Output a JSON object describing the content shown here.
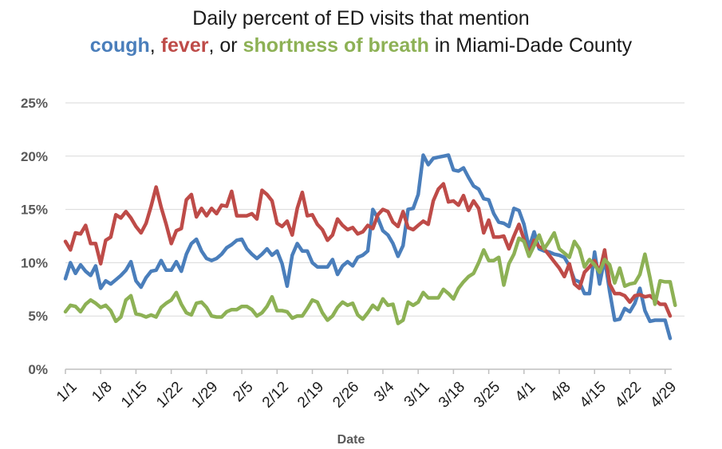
{
  "chart_data": {
    "type": "line",
    "title_line1": "Daily percent of ED visits that mention",
    "title_parts": [
      {
        "text": "cough",
        "series": 0
      },
      {
        "text": ",  "
      },
      {
        "text": "fever",
        "series": 1
      },
      {
        "text": ", or "
      },
      {
        "text": "shortness of breath",
        "series": 2
      },
      {
        "text": " in Miami-Dade County"
      }
    ],
    "xlabel": "Date",
    "ylabel": "",
    "ylim": [
      0,
      25
    ],
    "yticks": [
      0,
      5,
      10,
      15,
      20,
      25
    ],
    "ytick_labels": [
      "0%",
      "5%",
      "10%",
      "15%",
      "20%",
      "25%"
    ],
    "xtick_labels": [
      "1/1",
      "1/8",
      "1/15",
      "1/22",
      "1/29",
      "2/5",
      "2/12",
      "2/19",
      "2/26",
      "3/4",
      "3/11",
      "3/18",
      "3/25",
      "4/1",
      "4/8",
      "4/15",
      "4/22",
      "4/29"
    ],
    "xtick_day_index": [
      0,
      7,
      14,
      21,
      28,
      35,
      42,
      49,
      56,
      63,
      70,
      77,
      84,
      91,
      98,
      105,
      112,
      119
    ],
    "grid": true,
    "legend": "none",
    "series": [
      {
        "name": "cough",
        "color": "#4a7ebb",
        "values": [
          8.5,
          10,
          9,
          9.8,
          9.2,
          8.8,
          9.7,
          7.6,
          8.3,
          8,
          8.4,
          8.8,
          9.3,
          10.1,
          8.3,
          7.7,
          8.6,
          9.2,
          9.3,
          10.2,
          9.3,
          9.3,
          10.1,
          9.2,
          10.8,
          11.8,
          12.2,
          11.1,
          10.4,
          10.2,
          10.4,
          10.8,
          11.4,
          11.7,
          12.1,
          12.2,
          11.3,
          10.8,
          10.4,
          10.8,
          11.3,
          10.7,
          11.1,
          9.9,
          7.8,
          10.7,
          11.8,
          11.1,
          11.1,
          10,
          9.6,
          9.6,
          9.6,
          10.3,
          8.9,
          9.7,
          10.1,
          9.7,
          10.5,
          10.7,
          11.1,
          15,
          14.2,
          13,
          12.6,
          11.8,
          10.6,
          11.6,
          15,
          15.1,
          16.4,
          20.1,
          19.2,
          19.8,
          19.9,
          20,
          20.1,
          18.7,
          18.6,
          18.9,
          18,
          17.2,
          16.9,
          16,
          15.9,
          14.6,
          13.8,
          13.7,
          13.4,
          15.1,
          14.9,
          13.6,
          11.4,
          12.9,
          11.3,
          11.1,
          11,
          10.8,
          10.7,
          10.5,
          9.7,
          8.4,
          8.2,
          7.1,
          7.1,
          11,
          8,
          10.4,
          7.3,
          4.6,
          4.7,
          5.7,
          5.4,
          6.2,
          7.6,
          5.5,
          4.5,
          4.6,
          4.6,
          4.6,
          2.9
        ]
      },
      {
        "name": "fever",
        "color": "#be4b48",
        "values": [
          12,
          11.2,
          12.8,
          12.7,
          13.5,
          11.8,
          11.8,
          9.9,
          12.1,
          12.4,
          14.5,
          14.2,
          14.8,
          14.2,
          13.4,
          12.8,
          13.7,
          15.3,
          17.1,
          15.2,
          13.6,
          11.8,
          13,
          13.2,
          15.9,
          16.4,
          14.3,
          15.1,
          14.4,
          15.1,
          14.6,
          15.4,
          15.3,
          16.7,
          14.4,
          14.4,
          14.4,
          14.6,
          14.1,
          16.8,
          16.4,
          15.8,
          13.7,
          13.4,
          13.9,
          12.6,
          15.1,
          16.6,
          14.4,
          14.5,
          13.6,
          13.1,
          12.1,
          12.6,
          14.1,
          13.5,
          13.1,
          13.3,
          12.7,
          12.9,
          13.5,
          13.2,
          14.5,
          15,
          14.8,
          13.8,
          13.4,
          14.8,
          13.3,
          13.1,
          13.5,
          13.9,
          13.6,
          15.8,
          16.9,
          17.4,
          15.7,
          15.8,
          15.4,
          16.3,
          14.9,
          15.8,
          15.1,
          12.8,
          14,
          12.4,
          12.4,
          12.5,
          11.3,
          12.5,
          13.6,
          12.2,
          10.8,
          12.1,
          11.5,
          11.3,
          10.7,
          10.1,
          9.5,
          8.7,
          9.9,
          8,
          7.6,
          9.1,
          9.6,
          10.2,
          9.1,
          11.2,
          8,
          7.1,
          7.1,
          6.9,
          6.3,
          6.9,
          7,
          6.8,
          6.9,
          6.5,
          6.1,
          6.1,
          5
        ]
      },
      {
        "name": "shortness of breath",
        "color": "#8db155",
        "values": [
          5.4,
          6,
          5.9,
          5.4,
          6.1,
          6.5,
          6.2,
          5.8,
          6,
          5.5,
          4.5,
          4.9,
          6.5,
          6.9,
          5.2,
          5.1,
          4.9,
          5.1,
          4.9,
          5.8,
          6.2,
          6.5,
          7.2,
          6.1,
          5.3,
          5.1,
          6.2,
          6.3,
          5.8,
          5,
          4.9,
          4.9,
          5.4,
          5.6,
          5.6,
          5.9,
          5.9,
          5.6,
          5,
          5.3,
          5.9,
          6.8,
          5.5,
          5.5,
          5.4,
          4.8,
          5,
          5,
          5.7,
          6.5,
          6.3,
          5.3,
          4.6,
          5,
          5.8,
          6.3,
          6,
          6.2,
          5.1,
          4.7,
          5.3,
          6,
          5.6,
          6.6,
          6,
          6.1,
          4.3,
          4.6,
          6.3,
          6,
          6.3,
          7.2,
          6.7,
          6.7,
          6.7,
          7.5,
          7.1,
          6.6,
          7.6,
          8.2,
          8.7,
          9,
          10,
          11.2,
          10.2,
          10.2,
          10.5,
          7.9,
          9.9,
          10.8,
          12.3,
          12,
          10.6,
          11.6,
          12.6,
          11.3,
          12,
          12.8,
          11.3,
          10.9,
          10.5,
          12,
          11.3,
          9.6,
          10.3,
          9.8,
          9.1,
          10.3,
          9.8,
          8.1,
          9.5,
          7.8,
          8,
          8.1,
          8.9,
          10.8,
          8.6,
          6.1,
          8.3,
          8.2,
          8.2,
          6
        ]
      }
    ]
  }
}
